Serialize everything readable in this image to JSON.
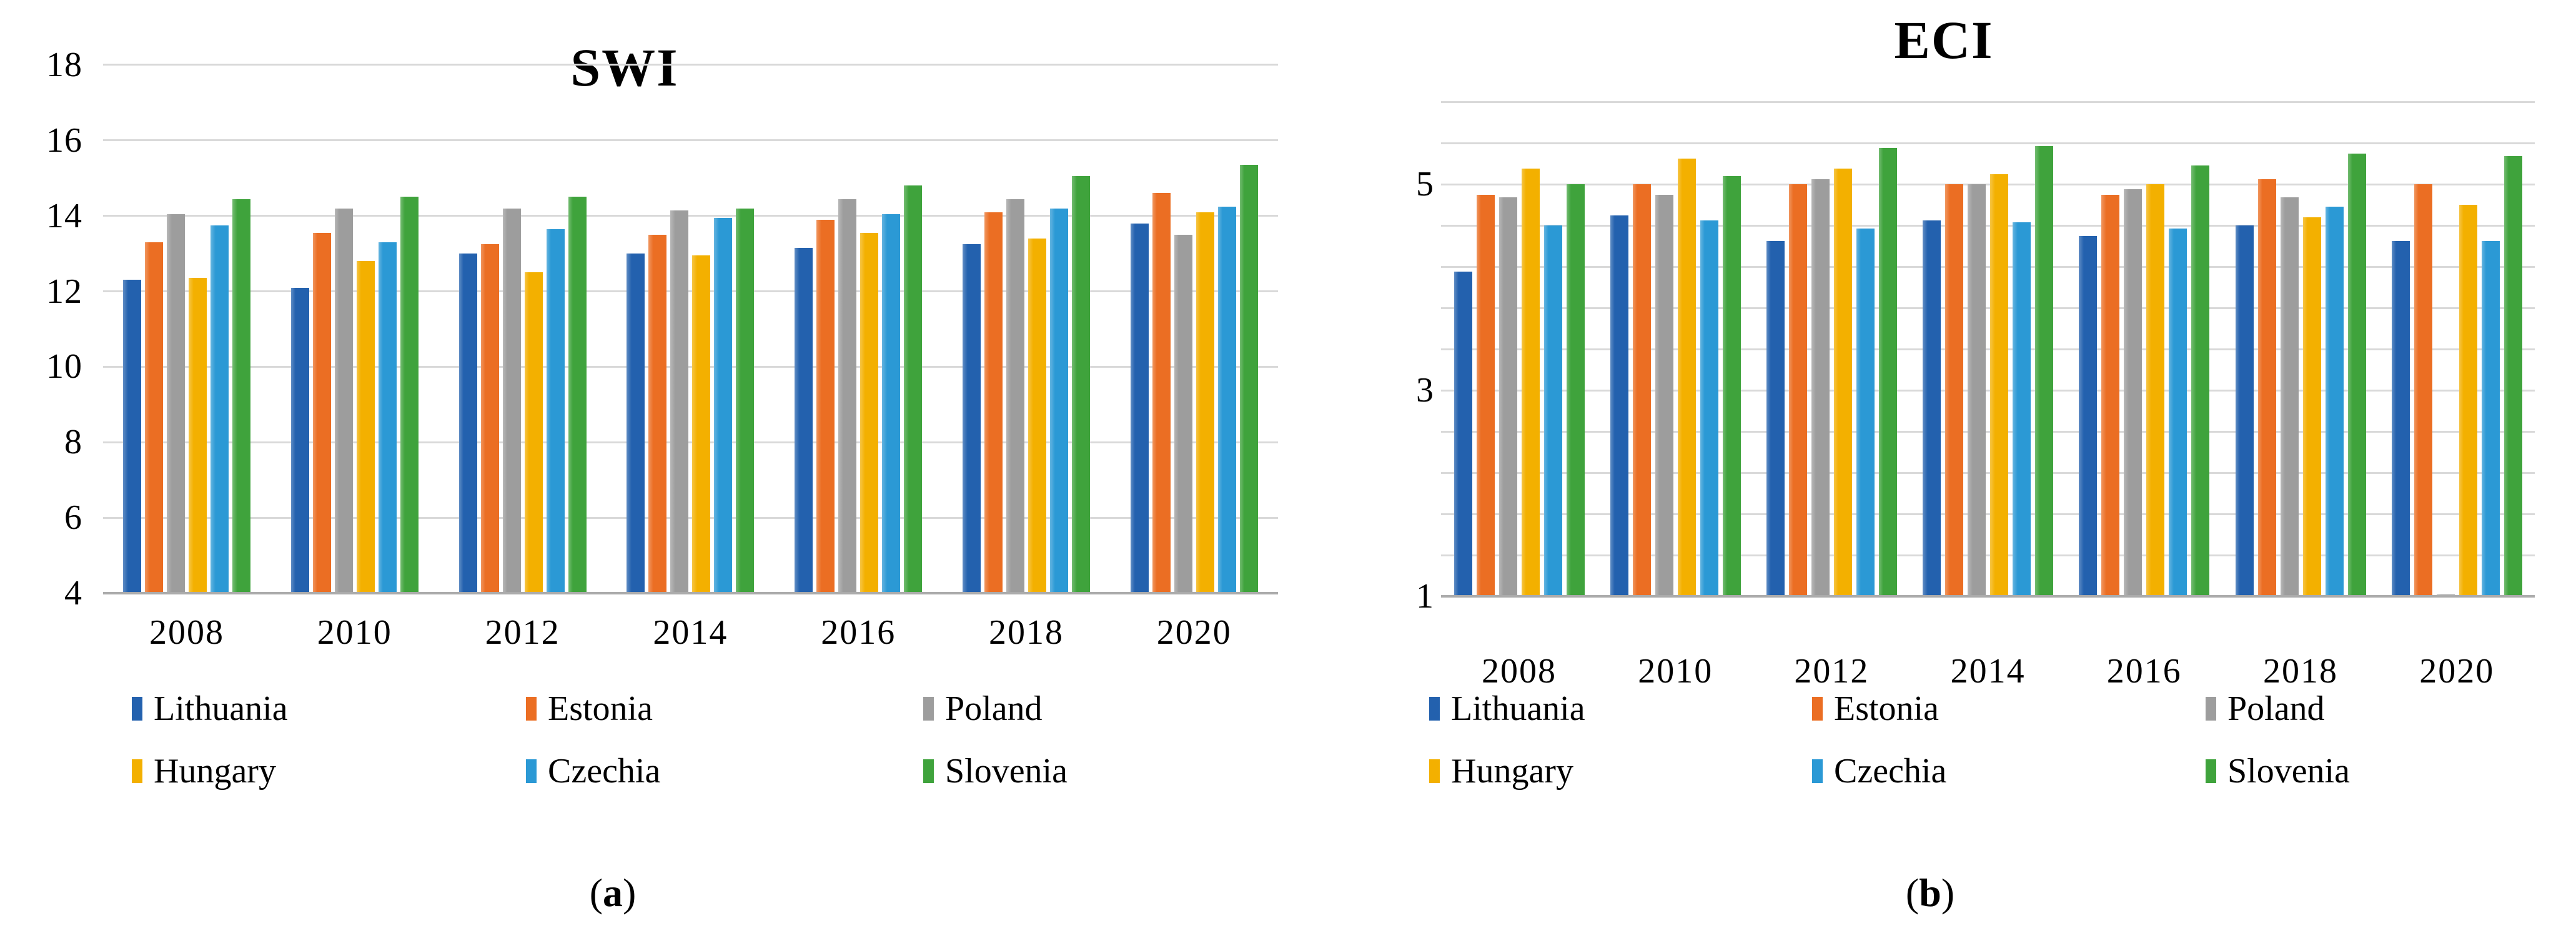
{
  "chart_data": [
    {
      "type": "bar",
      "title": "SWI",
      "caption_open": "(",
      "caption_letter": "a",
      "caption_close": ")",
      "categories": [
        "2008",
        "2010",
        "2012",
        "2014",
        "2016",
        "2018",
        "2020"
      ],
      "series": [
        {
          "name": "Lithuania",
          "color": "#2361AE",
          "values": [
            12.3,
            12.1,
            13.0,
            13.0,
            13.15,
            13.25,
            13.8
          ]
        },
        {
          "name": "Estonia",
          "color": "#EB6E23",
          "values": [
            13.3,
            13.55,
            13.25,
            13.5,
            13.9,
            14.1,
            14.6
          ]
        },
        {
          "name": "Poland",
          "color": "#9D9D9D",
          "values": [
            14.05,
            14.2,
            14.2,
            14.15,
            14.45,
            14.45,
            13.5
          ]
        },
        {
          "name": "Hungary",
          "color": "#F3B000",
          "values": [
            12.35,
            12.8,
            12.5,
            12.95,
            13.55,
            13.4,
            14.1
          ]
        },
        {
          "name": "Czechia",
          "color": "#2B99D5",
          "values": [
            13.75,
            13.3,
            13.65,
            13.95,
            14.05,
            14.2,
            14.25
          ]
        },
        {
          "name": "Slovenia",
          "color": "#3FA33C",
          "values": [
            14.45,
            14.5,
            14.5,
            14.2,
            14.8,
            15.05,
            15.35
          ]
        }
      ],
      "ylim": [
        4,
        18
      ],
      "gridline_interval": 2,
      "ytick_values": [
        18,
        16,
        14,
        12,
        10,
        8,
        6,
        4
      ],
      "ytick_labels": [
        "18",
        "16",
        "14",
        "12",
        "10",
        "8",
        "6",
        "4"
      ],
      "grid": "horizontal",
      "legend_position": "bottom"
    },
    {
      "type": "bar",
      "title": "ECI",
      "caption_open": "(",
      "caption_letter": "b",
      "caption_close": ")",
      "categories": [
        "2008",
        "2010",
        "2012",
        "2014",
        "2016",
        "2018",
        "2020"
      ],
      "series": [
        {
          "name": "Lithuania",
          "color": "#2361AE",
          "values": [
            4.15,
            4.7,
            4.45,
            4.65,
            4.5,
            4.6,
            4.45
          ]
        },
        {
          "name": "Estonia",
          "color": "#EB6E23",
          "values": [
            4.9,
            5.0,
            5.0,
            5.0,
            4.9,
            5.05,
            5.0
          ]
        },
        {
          "name": "Poland",
          "color": "#9D9D9D",
          "values": [
            4.87,
            4.9,
            5.05,
            5.0,
            4.95,
            4.87,
            1.02
          ]
        },
        {
          "name": "Hungary",
          "color": "#F3B000",
          "values": [
            5.15,
            5.25,
            5.15,
            5.1,
            5.0,
            4.68,
            4.8
          ]
        },
        {
          "name": "Czechia",
          "color": "#2B99D5",
          "values": [
            4.6,
            4.65,
            4.57,
            4.63,
            4.57,
            4.78,
            4.45
          ]
        },
        {
          "name": "Slovenia",
          "color": "#3FA33C",
          "values": [
            5.0,
            5.08,
            5.35,
            5.37,
            5.18,
            5.3,
            5.27
          ]
        }
      ],
      "ylim": [
        1,
        5.8
      ],
      "gridline_interval": 0.4,
      "ytick_values": [
        5,
        3,
        1
      ],
      "ytick_labels": [
        "5",
        "3",
        "1"
      ],
      "grid": "horizontal",
      "legend_position": "bottom"
    }
  ],
  "colors": {
    "gridline": "#d9d9d9",
    "axis_line": "#ababab",
    "text": "#000000"
  }
}
